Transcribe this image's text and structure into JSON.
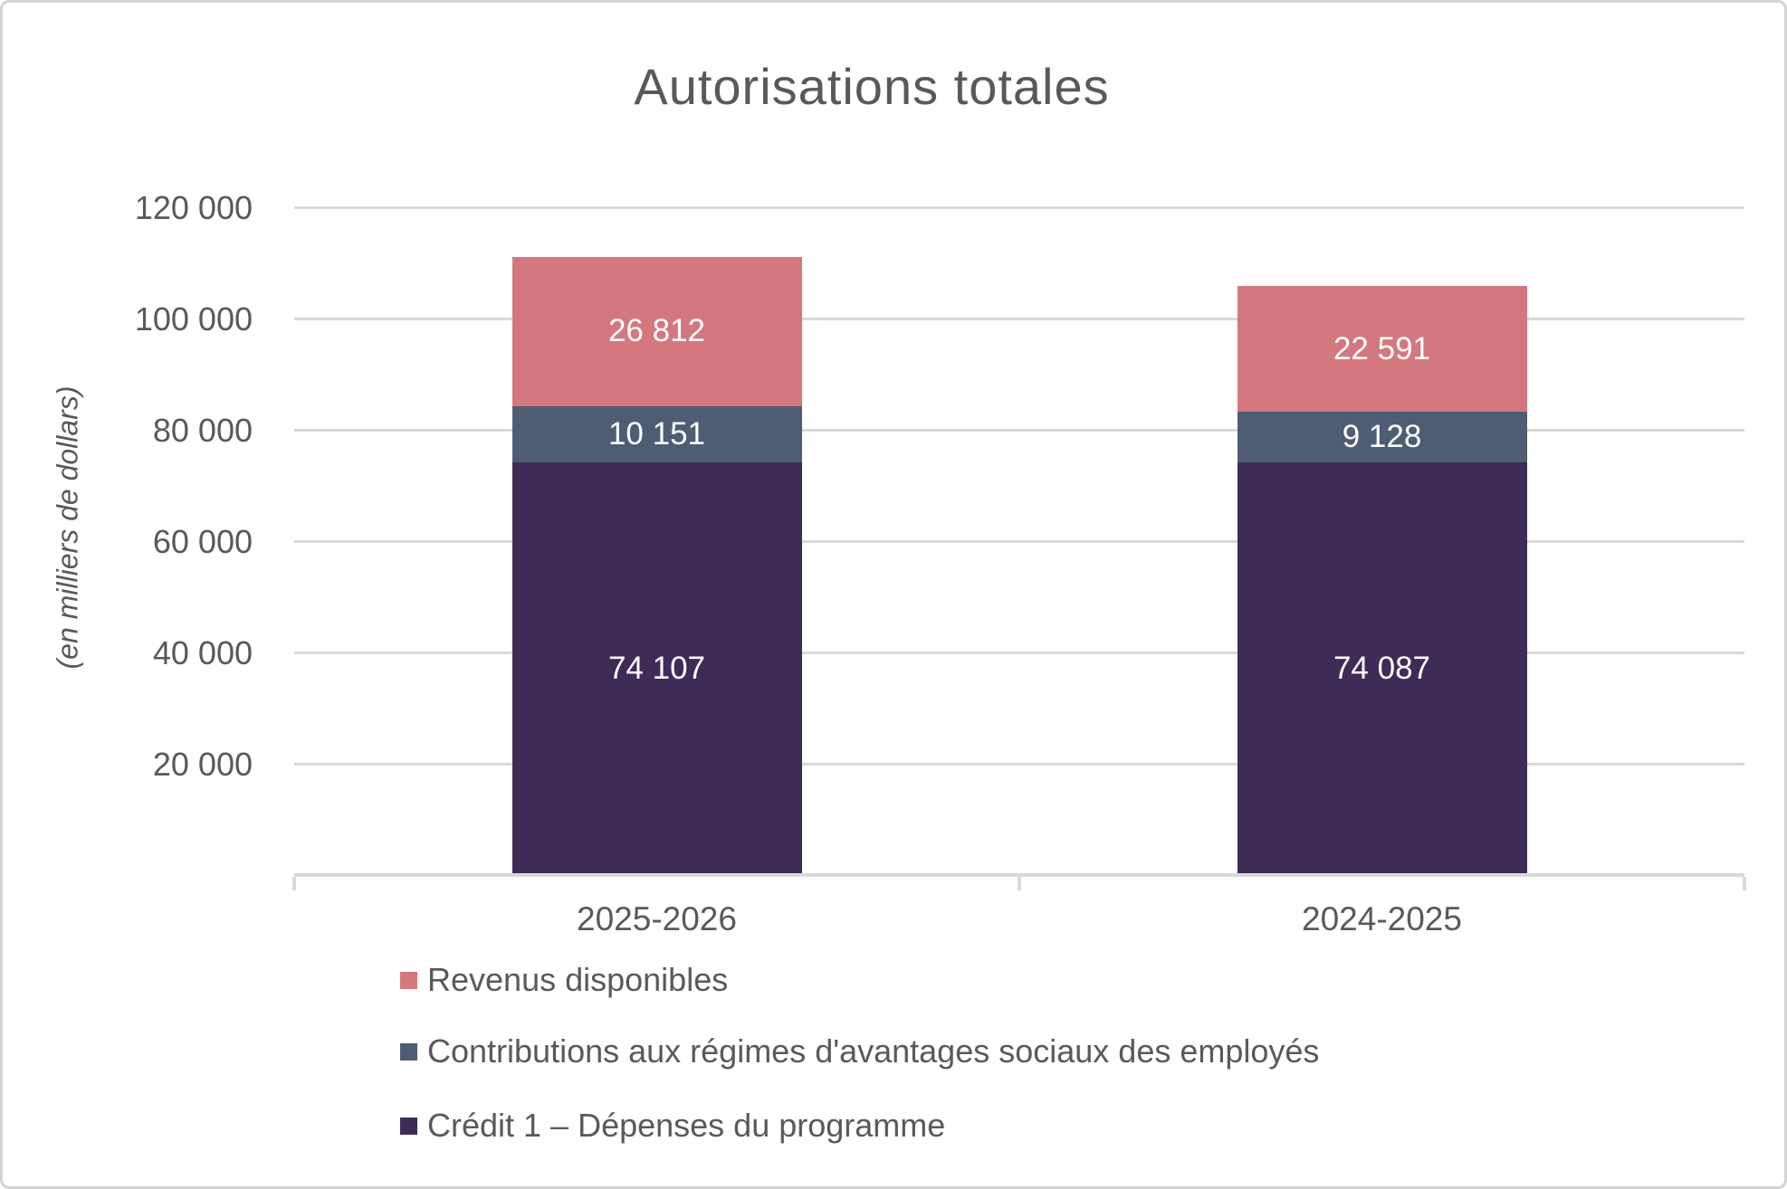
{
  "chart_data": {
    "type": "bar",
    "stacked": true,
    "title": "Autorisations totales",
    "ylabel": "(en milliers de dollars)",
    "xlabel": "",
    "grid": true,
    "legend_position": "bottom-left",
    "categories": [
      "2025-2026",
      "2024-2025"
    ],
    "series": [
      {
        "name": "Crédit 1 – Dépenses du programme",
        "color": "#3E2B58",
        "values": [
          74107,
          74087
        ],
        "labels": [
          "74 107",
          "74 087"
        ]
      },
      {
        "name": "Contributions aux régimes d'avantages sociaux des employés",
        "color": "#4E5C74",
        "values": [
          10151,
          9128
        ],
        "labels": [
          "10 151",
          "9 128"
        ]
      },
      {
        "name": "Revenus disponibles",
        "color": "#D5777F",
        "values": [
          26812,
          22591
        ],
        "labels": [
          "26 812",
          "22 591"
        ]
      }
    ],
    "totals": [
      111070,
      105806
    ],
    "y_axis": {
      "min": 0,
      "max": 120000,
      "tick_step": 20000,
      "ticks": [
        {
          "value": 20000,
          "label": "20 000"
        },
        {
          "value": 40000,
          "label": "40 000"
        },
        {
          "value": 60000,
          "label": "60 000"
        },
        {
          "value": 80000,
          "label": "80 000"
        },
        {
          "value": 100000,
          "label": "100 000"
        },
        {
          "value": 120000,
          "label": "120 000"
        }
      ]
    },
    "colors": {
      "text": "#595959",
      "gridline": "#D9D9D9",
      "axis": "#D9D9D9",
      "data_label": "#FFFFFF"
    }
  }
}
